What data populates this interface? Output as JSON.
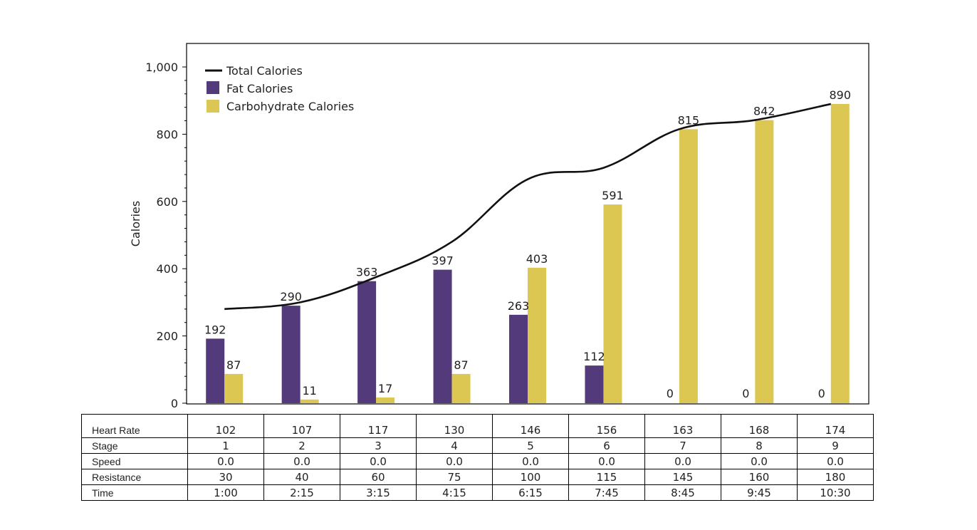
{
  "chart_data": {
    "type": "bar",
    "categories": [
      "1",
      "2",
      "3",
      "4",
      "5",
      "6",
      "7",
      "8",
      "9"
    ],
    "series": [
      {
        "name": "Fat Calories",
        "kind": "bar",
        "color": "#533a7b",
        "values": [
          192,
          290,
          363,
          397,
          263,
          112,
          0,
          0,
          0
        ]
      },
      {
        "name": "Carbohydrate Calories",
        "kind": "bar",
        "color": "#dcc753",
        "values": [
          87,
          11,
          17,
          87,
          403,
          591,
          815,
          842,
          890
        ]
      },
      {
        "name": "Total Calories",
        "kind": "line",
        "color": "#111111",
        "values": [
          280,
          300,
          375,
          480,
          666,
          700,
          815,
          842,
          890
        ]
      }
    ],
    "ylabel": "Calories",
    "ylim": [
      0,
      1050
    ],
    "yticks": [
      0,
      200,
      400,
      600,
      800,
      1000
    ],
    "ytick_labels": [
      "0",
      "200",
      "400",
      "600",
      "800",
      "1,000"
    ],
    "legend_position": "top-left",
    "bar_labels": {
      "fat": [
        "192",
        "290",
        "363",
        "397",
        "263",
        "112",
        "0",
        "0",
        "0"
      ],
      "carb": [
        "87",
        "11",
        "17",
        "87",
        "403",
        "591",
        "815",
        "842",
        "890"
      ]
    }
  },
  "table": {
    "rows": [
      {
        "label": "Heart Rate",
        "values": [
          "102",
          "107",
          "117",
          "130",
          "146",
          "156",
          "163",
          "168",
          "174"
        ]
      },
      {
        "label": "Stage",
        "values": [
          "1",
          "2",
          "3",
          "4",
          "5",
          "6",
          "7",
          "8",
          "9"
        ]
      },
      {
        "label": "Speed",
        "values": [
          "0.0",
          "0.0",
          "0.0",
          "0.0",
          "0.0",
          "0.0",
          "0.0",
          "0.0",
          "0.0"
        ]
      },
      {
        "label": "Resistance",
        "values": [
          "30",
          "40",
          "60",
          "75",
          "100",
          "115",
          "145",
          "160",
          "180"
        ]
      },
      {
        "label": "Time",
        "values": [
          "1:00",
          "2:15",
          "3:15",
          "4:15",
          "6:15",
          "7:45",
          "8:45",
          "9:45",
          "10:30"
        ]
      }
    ]
  }
}
